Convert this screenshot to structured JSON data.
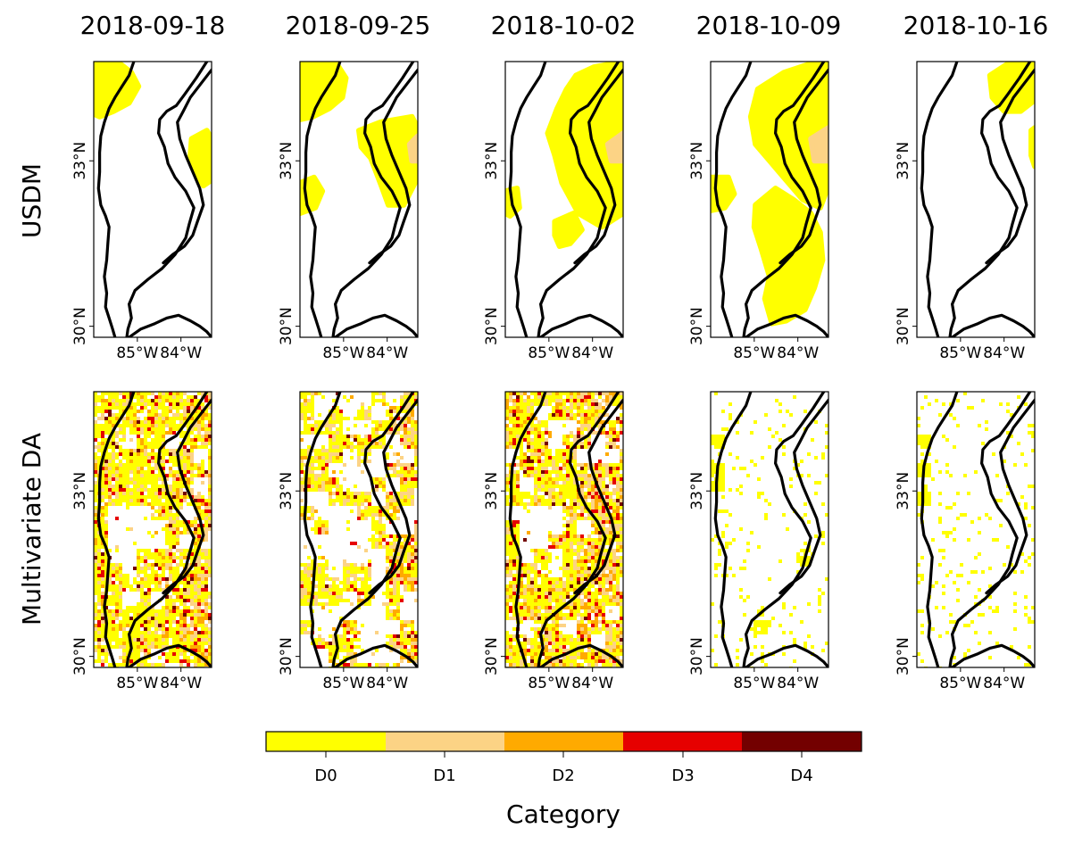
{
  "figure": {
    "dates": [
      "2018-09-18",
      "2018-09-25",
      "2018-10-02",
      "2018-10-09",
      "2018-10-16"
    ],
    "rows": [
      {
        "label": "USDM",
        "style": "smooth"
      },
      {
        "label": "Multivariate DA",
        "style": "pixelated"
      }
    ],
    "y_ticks": [
      "33°N",
      "30°N"
    ],
    "x_ticks": [
      "85°W",
      "84°W"
    ],
    "palette": {
      "D0": "#ffff00",
      "D1": "#fcd385",
      "D2": "#ffaa00",
      "D3": "#e60000",
      "D4": "#730000",
      "border": "#000000"
    },
    "usdm_maps": [
      {
        "date": "2018-09-18",
        "levels_shown": [
          "D0"
        ]
      },
      {
        "date": "2018-09-25",
        "levels_shown": [
          "D0",
          "D1"
        ]
      },
      {
        "date": "2018-10-02",
        "levels_shown": [
          "D0",
          "D1"
        ]
      },
      {
        "date": "2018-10-09",
        "levels_shown": [
          "D0",
          "D1"
        ]
      },
      {
        "date": "2018-10-16",
        "levels_shown": [
          "D0"
        ]
      }
    ],
    "da_maps": [
      {
        "date": "2018-09-18",
        "levels_shown": [
          "D0",
          "D1",
          "D2",
          "D3",
          "D4"
        ]
      },
      {
        "date": "2018-09-25",
        "levels_shown": [
          "D0",
          "D1",
          "D2",
          "D3",
          "D4"
        ]
      },
      {
        "date": "2018-10-02",
        "levels_shown": [
          "D0",
          "D1",
          "D2",
          "D3",
          "D4"
        ]
      },
      {
        "date": "2018-10-09",
        "levels_shown": [
          "D0"
        ]
      },
      {
        "date": "2018-10-16",
        "levels_shown": [
          "D0"
        ]
      }
    ]
  },
  "colorbar": {
    "categories": [
      "D0",
      "D1",
      "D2",
      "D3",
      "D4"
    ],
    "label": "Category"
  }
}
